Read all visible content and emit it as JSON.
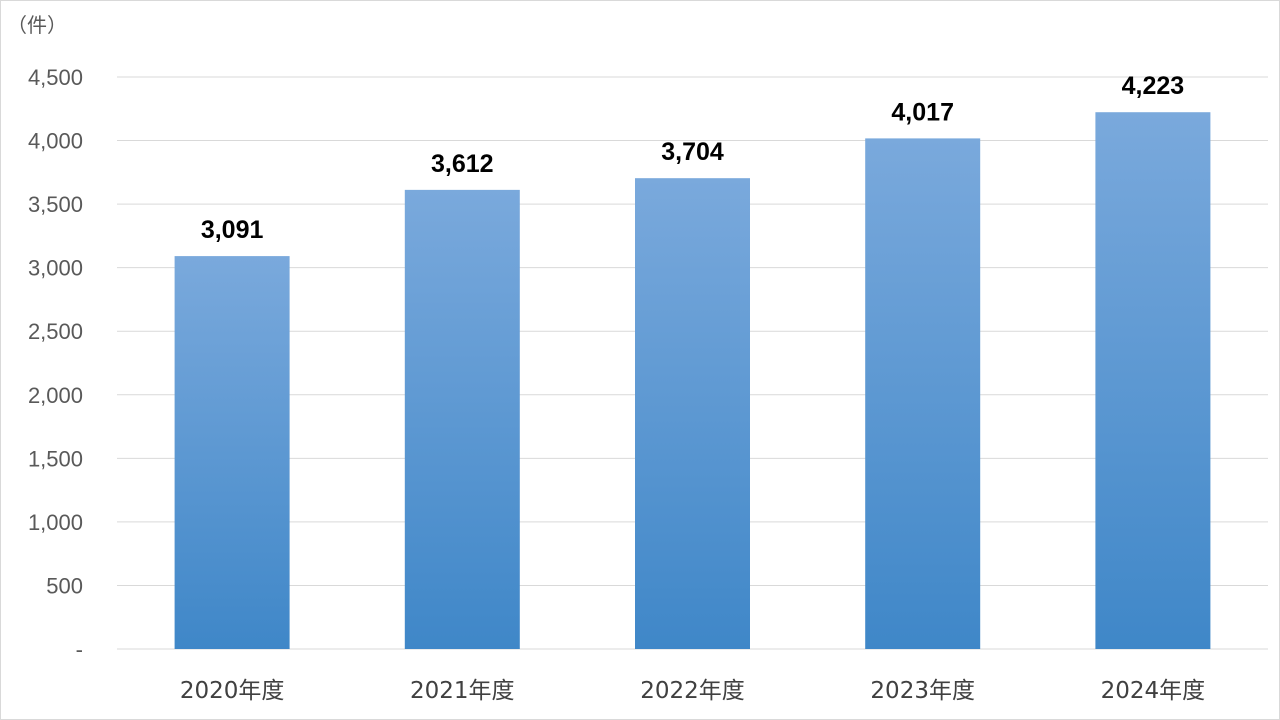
{
  "chart_data": {
    "type": "bar",
    "unit_label": "（件）",
    "categories": [
      "2020年度",
      "2021年度",
      "2022年度",
      "2023年度",
      "2024年度"
    ],
    "values": [
      3091,
      3612,
      3704,
      4017,
      4223
    ],
    "data_labels": [
      "3,091",
      "3,612",
      "3,704",
      "4,017",
      "4,223"
    ],
    "ylim": [
      0,
      4500
    ],
    "y_ticks": [
      0,
      500,
      1000,
      1500,
      2000,
      2500,
      3000,
      3500,
      4000,
      4500
    ],
    "y_tick_labels": [
      "-",
      "500",
      "1,000",
      "1,500",
      "2,000",
      "2,500",
      "3,000",
      "3,500",
      "4,000",
      "4,500"
    ],
    "grid": true,
    "legend": "none",
    "colors": {
      "bar_top": "#7aa9dc",
      "bar_bottom": "#3f87c8",
      "grid": "#d9d9d9"
    }
  }
}
